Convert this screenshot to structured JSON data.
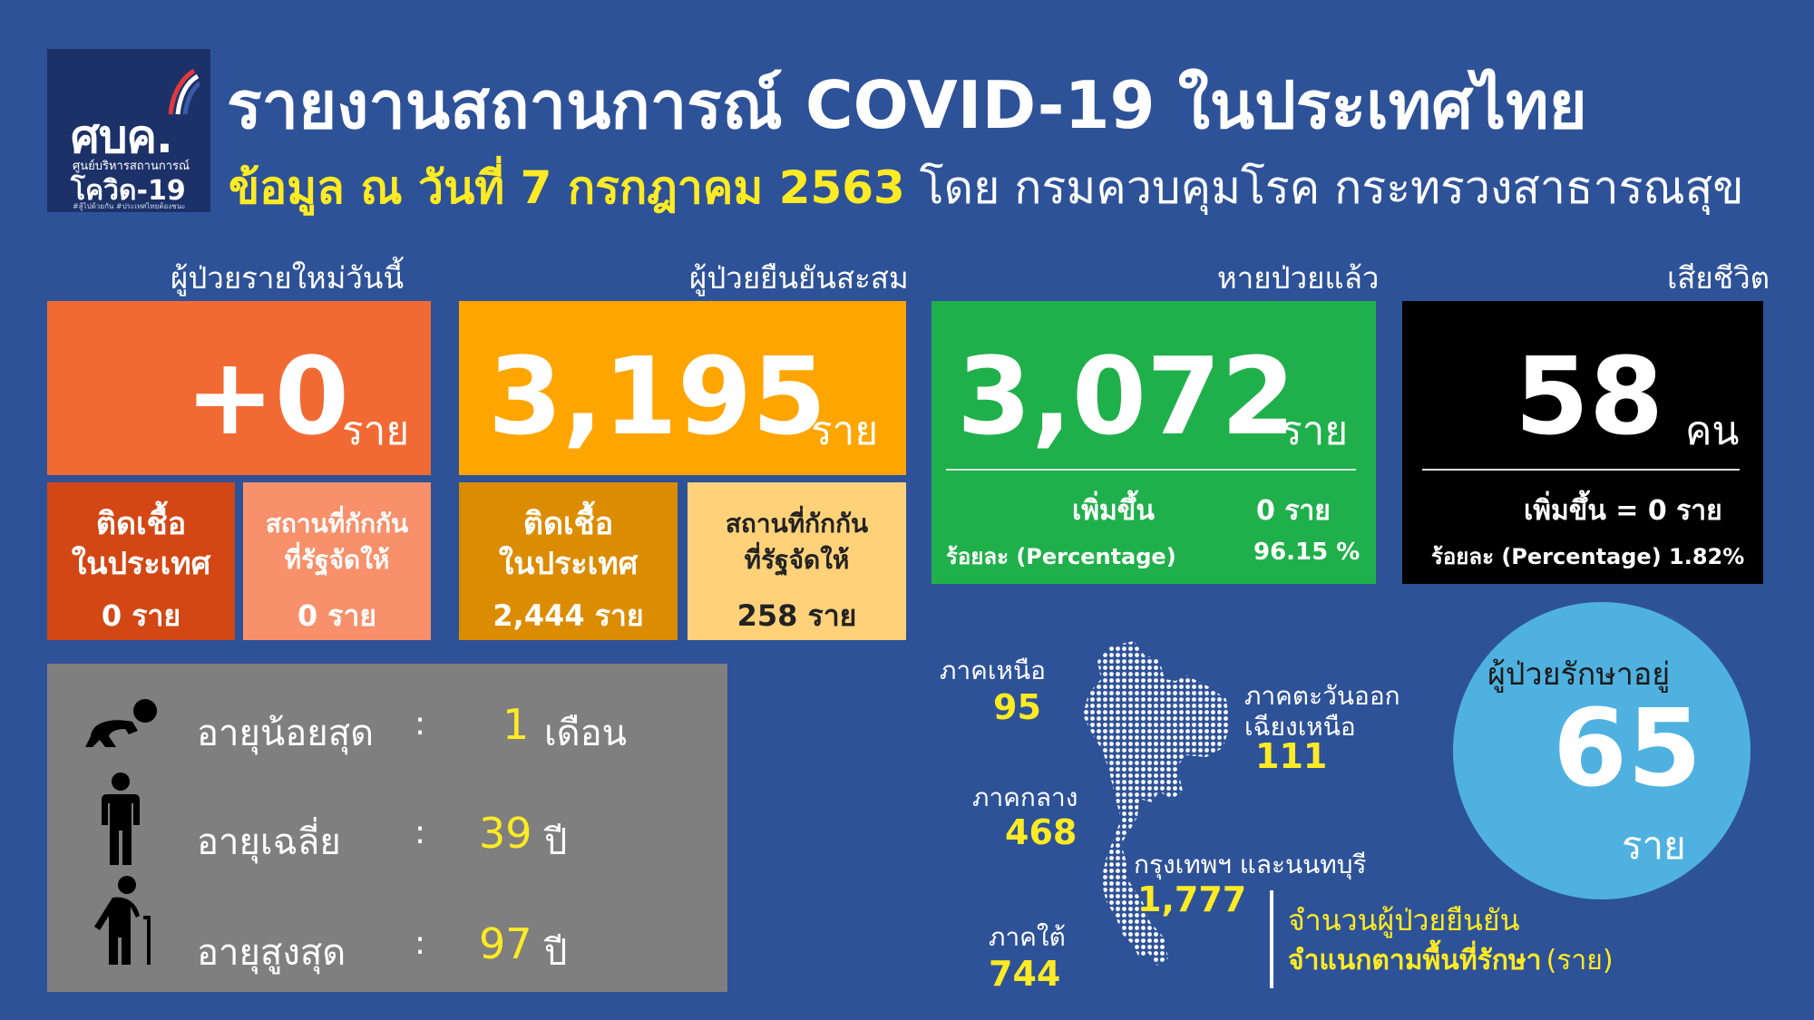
{
  "logo": {
    "mark": "ศบค.",
    "sub": "ศูนย์บริหารสถานการณ์",
    "brand": "โควิด-19",
    "tag": "#สู้ไปด้วยกัน #ประเทศไทยต้องชนะ"
  },
  "header": {
    "title": "รายงานสถานการณ์ COVID-19 ในประเทศไทย",
    "date": "ข้อมูล ณ วันที่ 7 กรกฎาคม 2563",
    "source": "โดย กรมควบคุมโรค กระทรวงสาธารณสุข"
  },
  "new_cases": {
    "label": "ผู้ป่วยรายใหม่วันนี้",
    "value": "+0",
    "unit": "ราย",
    "domestic": {
      "line1": "ติดเชื้อ",
      "line2": "ในประเทศ",
      "value": "0 ราย"
    },
    "quarantine": {
      "line1": "สถานที่กักกัน",
      "line2": "ที่รัฐจัดให้",
      "value": "0 ราย"
    }
  },
  "cumulative": {
    "label": "ผู้ป่วยยืนยันสะสม",
    "value": "3,195",
    "unit": "ราย",
    "domestic": {
      "line1": "ติดเชื้อ",
      "line2": "ในประเทศ",
      "value": "2,444 ราย"
    },
    "quarantine": {
      "line1": "สถานที่กักกัน",
      "line2": "ที่รัฐจัดให้",
      "value": "258 ราย"
    }
  },
  "recovered": {
    "label": "หายป่วยแล้ว",
    "value": "3,072",
    "unit": "ราย",
    "increase_label": "เพิ่มขึ้น",
    "increase_value": "0 ราย",
    "pct_label": "ร้อยละ (Percentage)",
    "pct_value": "96.15 %"
  },
  "deaths": {
    "label": "เสียชีวิต",
    "value": "58",
    "unit": "คน",
    "increase": "เพิ่มขึ้น = 0 ราย",
    "pct": "ร้อยละ (Percentage) 1.82%"
  },
  "ages": [
    {
      "label": "อายุน้อยสุด",
      "colon": ":",
      "value": "1",
      "unit": "เดือน",
      "icon": "infant-icon"
    },
    {
      "label": "อายุเฉลี่ย",
      "colon": ":",
      "value": "39",
      "unit": "ปี",
      "icon": "adult-icon"
    },
    {
      "label": "อายุสูงสุด",
      "colon": ":",
      "value": "97",
      "unit": "ปี",
      "icon": "elderly-icon"
    }
  ],
  "regions": {
    "north": {
      "name": "ภาคเหนือ",
      "value": "95"
    },
    "northeast": {
      "name1": "ภาคตะวันออก",
      "name2": "เฉียงเหนือ",
      "value": "111"
    },
    "central": {
      "name": "ภาคกลาง",
      "value": "468"
    },
    "bangkok": {
      "name": "กรุงเทพฯ และนนทบุรี",
      "value": "1,777"
    },
    "south": {
      "name": "ภาคใต้",
      "value": "744"
    }
  },
  "legend": {
    "line1": "จำนวนผู้ป่วยยืนยัน",
    "line2": "จำแนกตามพื้นที่รักษา",
    "unit": "(ราย)"
  },
  "treating": {
    "label": "ผู้ป่วยรักษาอยู่",
    "value": "65",
    "unit": "ราย"
  },
  "colors": {
    "background": "#2e5298",
    "new_cases": "#f26a33",
    "cumulative": "#ffa500",
    "recovered": "#20b04b",
    "deaths": "#000000",
    "highlight": "#ffeb24",
    "treating": "#4fb1e0"
  }
}
